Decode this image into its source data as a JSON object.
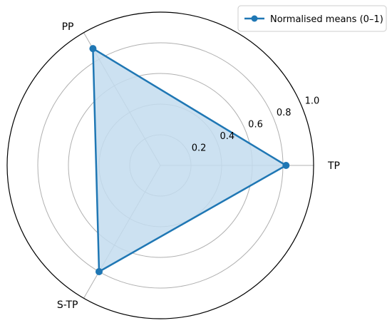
{
  "chart_data": {
    "type": "radar",
    "title": "",
    "axes": [
      "TP",
      "PP",
      "S-TP"
    ],
    "series": [
      {
        "name": "Normalised means (0–1)",
        "values": [
          0.82,
          0.88,
          0.8
        ]
      }
    ],
    "r_ticks": [
      "0.2",
      "0.4",
      "0.6",
      "0.8",
      "1.0"
    ],
    "r_range": [
      0,
      1.0
    ],
    "grid": true,
    "legend_position": "top-right",
    "colors": {
      "line": "#1f77b4",
      "fill": "#c3dcef",
      "grid": "#b0b0b0",
      "frame": "#000000"
    }
  }
}
